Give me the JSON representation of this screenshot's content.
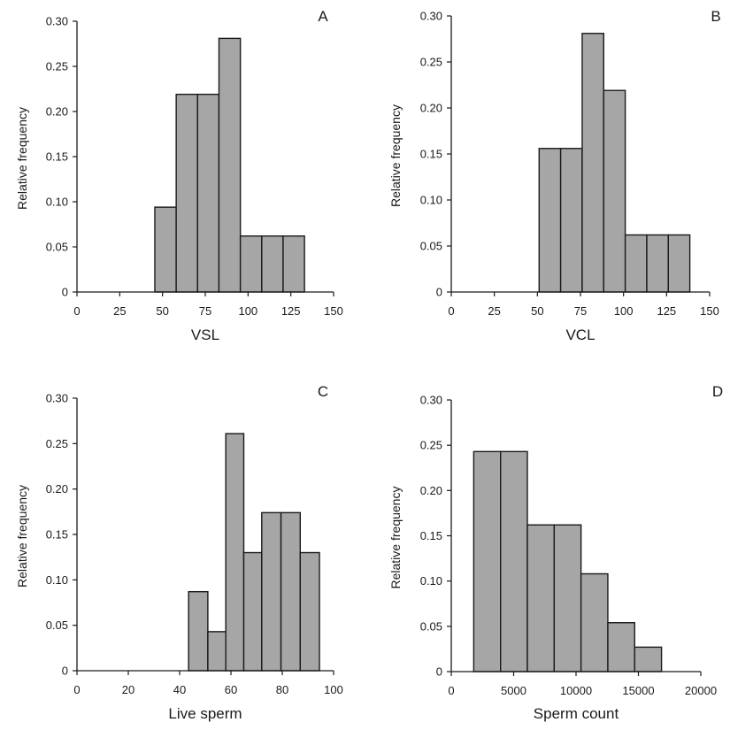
{
  "style": {
    "bar_fill": "#a6a6a6",
    "bar_stroke": "#1a1a1a",
    "axis_color": "#1a1a1a"
  },
  "chart_data": [
    {
      "type": "bar",
      "panel": "A",
      "xlabel": "VSL",
      "ylabel": "Relative frequency",
      "xlim": [
        0,
        150
      ],
      "ylim": [
        0,
        0.3
      ],
      "x_ticks": [
        0,
        25,
        50,
        75,
        100,
        125,
        150
      ],
      "x_tick_labels": [
        "0",
        "25",
        "50",
        "75",
        "100",
        "125",
        "150"
      ],
      "y_ticks": [
        0,
        0.05,
        0.1,
        0.15,
        0.2,
        0.25,
        0.3
      ],
      "y_tick_labels": [
        "0",
        "0.05",
        "0.10",
        "0.15",
        "0.20",
        "0.25",
        "0.30"
      ],
      "bin_edges": [
        45.5,
        58,
        70.5,
        83,
        95.5,
        108,
        120.5,
        133
      ],
      "values": [
        0.094,
        0.219,
        0.219,
        0.281,
        0.062,
        0.062,
        0.062
      ]
    },
    {
      "type": "bar",
      "panel": "B",
      "xlabel": "VCL",
      "ylabel": "Relative frequency",
      "xlim": [
        0,
        150
      ],
      "ylim": [
        0,
        0.3
      ],
      "x_ticks": [
        0,
        25,
        50,
        75,
        100,
        125,
        150
      ],
      "x_tick_labels": [
        "0",
        "25",
        "50",
        "75",
        "100",
        "125",
        "150"
      ],
      "y_ticks": [
        0,
        0.05,
        0.1,
        0.15,
        0.2,
        0.25,
        0.3
      ],
      "y_tick_labels": [
        "0",
        "0.05",
        "0.10",
        "0.15",
        "0.20",
        "0.25",
        "0.30"
      ],
      "bin_edges": [
        51,
        63.5,
        76,
        88.5,
        101,
        113.5,
        126,
        138.5
      ],
      "values": [
        0.156,
        0.156,
        0.281,
        0.219,
        0.062,
        0.062,
        0.062
      ]
    },
    {
      "type": "bar",
      "panel": "C",
      "xlabel": "Live sperm",
      "ylabel": "Relative frequency",
      "xlim": [
        0,
        100
      ],
      "ylim": [
        0,
        0.3
      ],
      "x_ticks": [
        0,
        20,
        40,
        60,
        80,
        100
      ],
      "x_tick_labels": [
        "0",
        "20",
        "40",
        "60",
        "80",
        "100"
      ],
      "y_ticks": [
        0,
        0.05,
        0.1,
        0.15,
        0.2,
        0.25,
        0.3
      ],
      "y_tick_labels": [
        "0",
        "0.05",
        "0.10",
        "0.15",
        "0.20",
        "0.25",
        "0.30"
      ],
      "bin_edges": [
        43.5,
        51,
        58,
        65,
        72,
        79.5,
        87,
        94.5
      ],
      "values": [
        0.087,
        0.043,
        0.261,
        0.13,
        0.174,
        0.174,
        0.13
      ]
    },
    {
      "type": "bar",
      "panel": "D",
      "xlabel": "Sperm count",
      "ylabel": "Relative frequency",
      "xlim": [
        0,
        20000
      ],
      "ylim": [
        0,
        0.3
      ],
      "x_ticks": [
        0,
        5000,
        10000,
        15000,
        20000
      ],
      "x_tick_labels": [
        "0",
        "5000",
        "10000",
        "15000",
        "20000"
      ],
      "y_ticks": [
        0,
        0.05,
        0.1,
        0.15,
        0.2,
        0.25,
        0.3
      ],
      "y_tick_labels": [
        "0",
        "0.05",
        "0.10",
        "0.15",
        "0.20",
        "0.25",
        "0.30"
      ],
      "bin_edges": [
        1800,
        3950,
        6100,
        8250,
        10400,
        12550,
        14700,
        16850
      ],
      "values": [
        0.243,
        0.243,
        0.162,
        0.162,
        0.108,
        0.054,
        0.027
      ]
    }
  ]
}
